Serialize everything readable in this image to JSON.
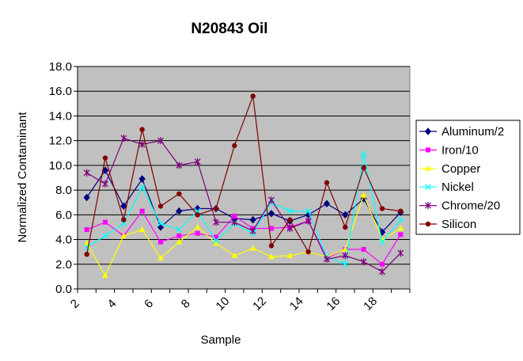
{
  "chart_data": {
    "type": "line",
    "title": "N20843 Oil",
    "xlabel": "Sample",
    "ylabel": "Normalized Contaminant",
    "ylim": [
      0,
      18
    ],
    "y_ticks": [
      "0.0",
      "2.0",
      "4.0",
      "6.0",
      "8.0",
      "10.0",
      "12.0",
      "14.0",
      "16.0",
      "18.0"
    ],
    "xlim": [
      2,
      20
    ],
    "x_ticks": [
      "2",
      "4",
      "6",
      "8",
      "10",
      "12",
      "14",
      "16",
      "18"
    ],
    "x": [
      2.5,
      3.5,
      4.5,
      5.5,
      6.5,
      7.5,
      8.5,
      9.5,
      10.5,
      11.5,
      12.5,
      13.5,
      14.5,
      15.5,
      16.5,
      17.5,
      18.5,
      19.5
    ],
    "grid": true,
    "legend_position": "right",
    "plot_background": "#c0c0c0",
    "series": [
      {
        "name": "Aluminum/2",
        "color": "#000080",
        "marker": "diamond",
        "values": [
          7.4,
          9.6,
          6.7,
          8.9,
          5.0,
          6.3,
          6.5,
          6.5,
          5.7,
          5.6,
          6.1,
          5.5,
          6.0,
          6.9,
          6.0,
          7.3,
          4.6,
          6.2
        ]
      },
      {
        "name": "Iron/10",
        "color": "#ff00ff",
        "marker": "square",
        "values": [
          4.8,
          5.4,
          4.3,
          6.3,
          3.8,
          4.3,
          4.5,
          4.2,
          5.9,
          4.9,
          4.9,
          5.0,
          5.5,
          2.5,
          3.2,
          3.2,
          2.0,
          4.4
        ]
      },
      {
        "name": "Copper",
        "color": "#ffff00",
        "marker": "triangle",
        "values": [
          3.7,
          1.1,
          4.3,
          4.8,
          2.5,
          3.8,
          5.0,
          3.7,
          2.7,
          3.3,
          2.6,
          2.7,
          3.0,
          2.6,
          3.2,
          7.6,
          4.0,
          4.9
        ]
      },
      {
        "name": "Nickel",
        "color": "#00ffff",
        "marker": "x",
        "values": [
          3.4,
          4.3,
          5.3,
          8.2,
          5.3,
          4.8,
          6.3,
          3.9,
          5.3,
          4.5,
          7.0,
          6.3,
          6.3,
          2.6,
          2.0,
          10.9,
          3.8,
          5.6
        ]
      },
      {
        "name": "Chrome/20",
        "color": "#800080",
        "marker": "star",
        "values": [
          9.4,
          8.5,
          12.2,
          11.7,
          12.0,
          10.0,
          10.3,
          5.4,
          5.4,
          4.7,
          7.2,
          4.9,
          5.5,
          2.4,
          2.7,
          2.2,
          1.4,
          2.9
        ]
      },
      {
        "name": "Silicon",
        "color": "#800000",
        "marker": "circle",
        "values": [
          2.8,
          10.6,
          5.6,
          12.9,
          6.7,
          7.7,
          6.0,
          6.5,
          11.6,
          15.6,
          3.5,
          5.6,
          3.0,
          8.6,
          5.0,
          9.8,
          6.5,
          6.3
        ]
      }
    ]
  }
}
